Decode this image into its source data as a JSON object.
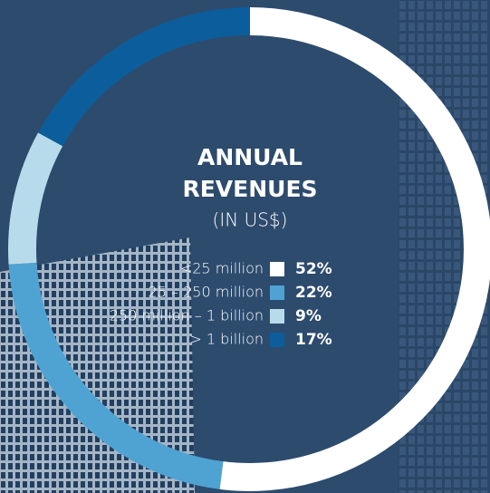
{
  "chart_data": {
    "type": "donut",
    "title": "ANNUAL REVENUES",
    "subtitle": "(IN US$)",
    "categories": [
      "<25 million",
      "25 – 250 million",
      "250 million – 1 billion",
      "> 1 billion"
    ],
    "values": [
      52,
      22,
      9,
      17
    ],
    "value_labels": [
      "52%",
      "22%",
      "9%",
      "17%"
    ],
    "colors": [
      "#ffffff",
      "#4fa3d2",
      "#b8dbeb",
      "#0b5e9b"
    ]
  }
}
